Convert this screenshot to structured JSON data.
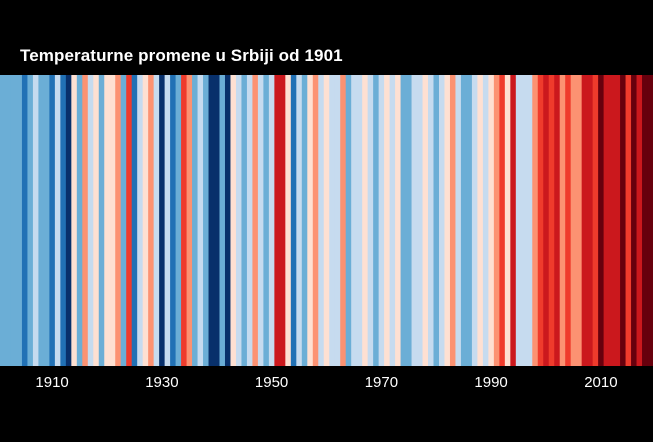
{
  "chart_data": {
    "type": "heatmap",
    "title": "Temperaturne promene u Srbiji od 1901",
    "xlabel": "",
    "ylabel": "",
    "x_range": [
      1901,
      2019
    ],
    "x_tick_labels": [
      "1910",
      "1930",
      "1950",
      "1970",
      "1990",
      "2010"
    ],
    "x_tick_values": [
      1910,
      1930,
      1950,
      1970,
      1990,
      2010
    ],
    "color_scale": {
      "levels": [
        -3,
        -2,
        -1,
        0,
        1,
        2,
        3,
        4,
        5
      ],
      "colors": [
        "#08306b",
        "#2171b5",
        "#6baed6",
        "#c6dbef",
        "#fee0d2",
        "#fc9272",
        "#ef3b2c",
        "#cb181d",
        "#67000d"
      ],
      "meaning": "blue = colder year, red = warmer year"
    },
    "years": [
      1901,
      1902,
      1903,
      1904,
      1905,
      1906,
      1907,
      1908,
      1909,
      1910,
      1911,
      1912,
      1913,
      1914,
      1915,
      1916,
      1917,
      1918,
      1919,
      1920,
      1921,
      1922,
      1923,
      1924,
      1925,
      1926,
      1927,
      1928,
      1929,
      1930,
      1931,
      1932,
      1933,
      1934,
      1935,
      1936,
      1937,
      1938,
      1939,
      1940,
      1941,
      1942,
      1943,
      1944,
      1945,
      1946,
      1947,
      1948,
      1949,
      1950,
      1951,
      1952,
      1953,
      1954,
      1955,
      1956,
      1957,
      1958,
      1959,
      1960,
      1961,
      1962,
      1963,
      1964,
      1965,
      1966,
      1967,
      1968,
      1969,
      1970,
      1971,
      1972,
      1973,
      1974,
      1975,
      1976,
      1977,
      1978,
      1979,
      1980,
      1981,
      1982,
      1983,
      1984,
      1985,
      1986,
      1987,
      1988,
      1989,
      1990,
      1991,
      1992,
      1993,
      1994,
      1995,
      1996,
      1997,
      1998,
      1999,
      2000,
      2001,
      2002,
      2003,
      2004,
      2005,
      2006,
      2007,
      2008,
      2009,
      2010,
      2011,
      2012,
      2013,
      2014,
      2015,
      2016,
      2017,
      2018,
      2019
    ],
    "values": [
      -1,
      -1,
      -1,
      -1,
      -2,
      -1,
      0,
      -1,
      -1,
      -2,
      0,
      -2,
      -3,
      1,
      -1,
      2,
      0,
      1,
      -1,
      1,
      1,
      2,
      -1,
      3,
      -2,
      0,
      1,
      2,
      0,
      -3,
      0,
      -2,
      -1,
      3,
      2,
      -1,
      0,
      -1,
      -3,
      -3,
      -1,
      -3,
      1,
      0,
      -1,
      0,
      2,
      0,
      -1,
      0,
      4,
      4,
      1,
      -2,
      0,
      -1,
      1,
      2,
      0,
      1,
      0,
      0,
      2,
      -1,
      0,
      0,
      1,
      0,
      -1,
      0,
      1,
      0,
      1,
      -1,
      -1,
      0,
      0,
      1,
      0,
      -1,
      0,
      1,
      2,
      0,
      -1,
      -1,
      0,
      1,
      0,
      1,
      2,
      3,
      1,
      4,
      0,
      0,
      0,
      2,
      3,
      4,
      3,
      4,
      2,
      3,
      2,
      2,
      4,
      4,
      3,
      5,
      4,
      4,
      4,
      5,
      3,
      5,
      4,
      5,
      5
    ]
  }
}
